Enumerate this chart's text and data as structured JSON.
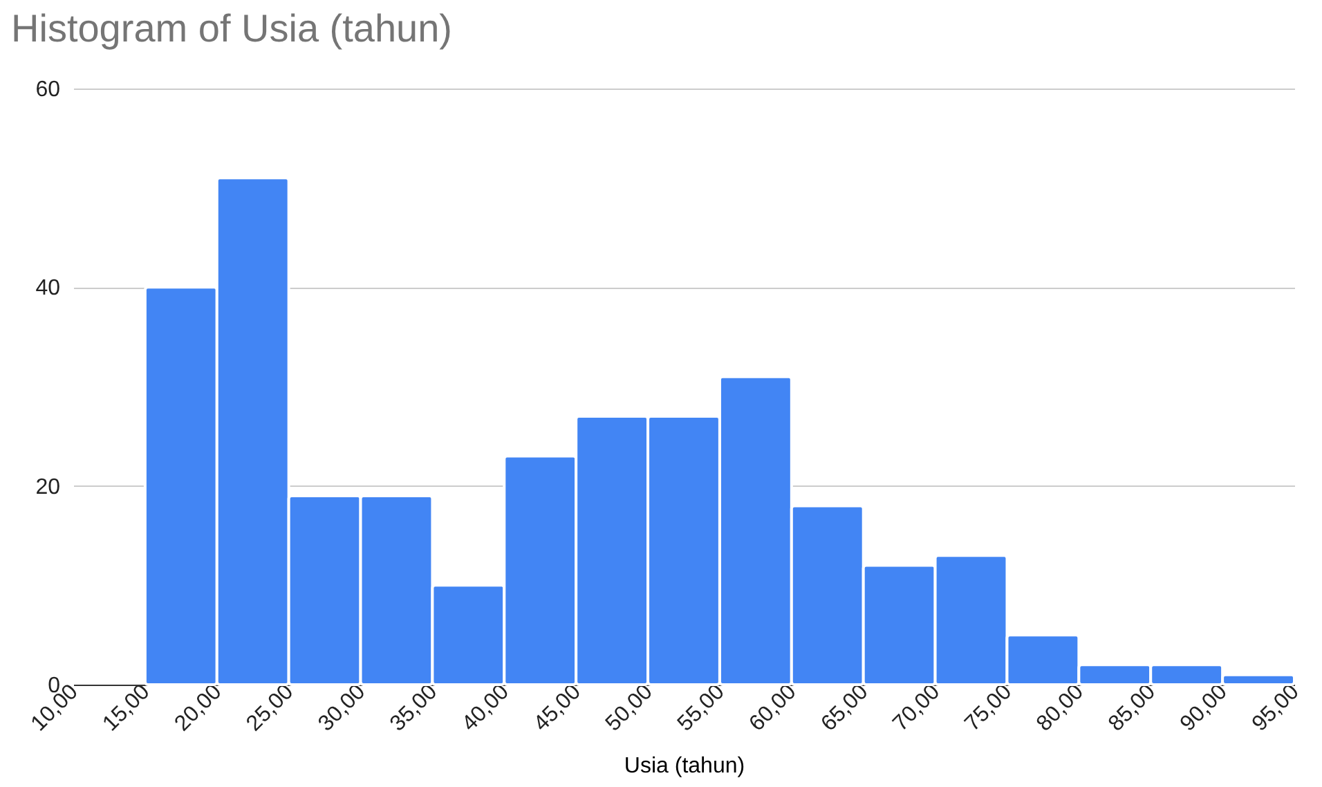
{
  "chart_data": {
    "type": "histogram",
    "title": "Histogram of Usia (tahun)",
    "xlabel": "Usia (tahun)",
    "bins": [
      15,
      20,
      25,
      30,
      35,
      40,
      45,
      50,
      55,
      60,
      65,
      70,
      75,
      80,
      85,
      90,
      95
    ],
    "values": [
      40,
      51,
      19,
      19,
      10,
      23,
      27,
      27,
      31,
      18,
      12,
      13,
      5,
      2,
      2,
      1
    ],
    "color": "#4285f4",
    "xlim": [
      10,
      95
    ],
    "xticks": [
      {
        "value": 10,
        "label": "10,00"
      },
      {
        "value": 15,
        "label": "15,00"
      },
      {
        "value": 20,
        "label": "20,00"
      },
      {
        "value": 25,
        "label": "25,00"
      },
      {
        "value": 30,
        "label": "30,00"
      },
      {
        "value": 35,
        "label": "35,00"
      },
      {
        "value": 40,
        "label": "40,00"
      },
      {
        "value": 45,
        "label": "45,00"
      },
      {
        "value": 50,
        "label": "50,00"
      },
      {
        "value": 55,
        "label": "55,00"
      },
      {
        "value": 60,
        "label": "60,00"
      },
      {
        "value": 65,
        "label": "65,00"
      },
      {
        "value": 70,
        "label": "70,00"
      },
      {
        "value": 75,
        "label": "75,00"
      },
      {
        "value": 80,
        "label": "80,00"
      },
      {
        "value": 85,
        "label": "85,00"
      },
      {
        "value": 90,
        "label": "90,00"
      },
      {
        "value": 95,
        "label": "95,00"
      }
    ],
    "ylim": [
      0,
      60
    ],
    "yticks": [
      0,
      20,
      40,
      60
    ],
    "grid": "y"
  }
}
